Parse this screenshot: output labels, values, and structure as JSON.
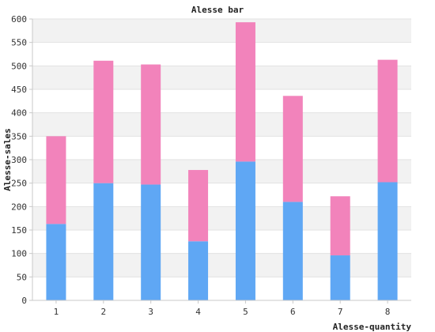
{
  "chart_data": {
    "type": "bar",
    "stacked": true,
    "title": "Alesse bar",
    "xlabel": "Alesse-quantity",
    "ylabel": "Alesse-sales",
    "categories": [
      "1",
      "2",
      "3",
      "4",
      "5",
      "6",
      "7",
      "8"
    ],
    "ylim": [
      0,
      600
    ],
    "yticks": [
      0,
      50,
      100,
      150,
      200,
      250,
      300,
      350,
      400,
      450,
      500,
      550,
      600
    ],
    "grid": true,
    "series": [
      {
        "values": [
          163,
          250,
          247,
          126,
          296,
          210,
          96,
          252
        ],
        "color": "#5fa7f4"
      },
      {
        "values": [
          187,
          261,
          256,
          152,
          297,
          226,
          126,
          261
        ],
        "color": "#f283bb"
      }
    ]
  }
}
